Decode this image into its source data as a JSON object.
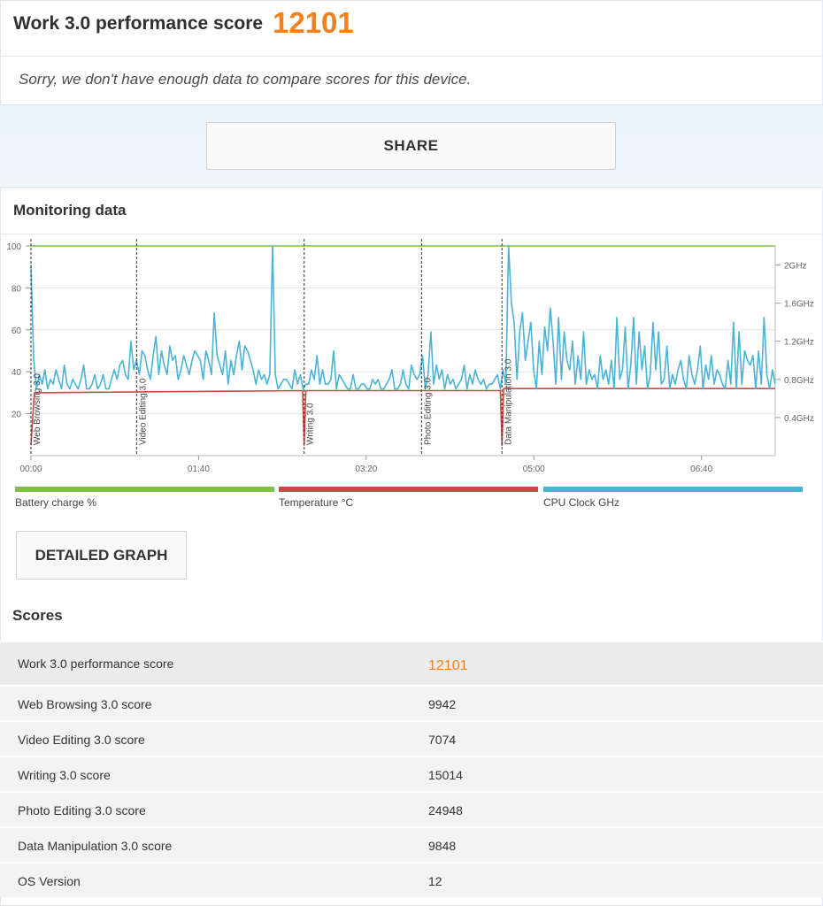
{
  "header": {
    "title": "Work 3.0 performance score",
    "score": "12101",
    "note": "Sorry, we don't have enough data to compare scores for this device."
  },
  "share_label": "SHARE",
  "monitoring": {
    "title": "Monitoring data",
    "detailed_button": "DETAILED GRAPH",
    "legend": [
      {
        "label": "Battery charge %",
        "color": "#7cc144"
      },
      {
        "label": "Temperature °C",
        "color": "#c94a45"
      },
      {
        "label": "CPU Clock GHz",
        "color": "#4ab3d6"
      }
    ]
  },
  "chart_data": {
    "type": "line",
    "x_tick_labels": [
      "00:00",
      "01:40",
      "03:20",
      "05:00",
      "06:40"
    ],
    "x_ticks_sec": [
      0,
      100,
      200,
      300,
      400
    ],
    "xlim_sec": [
      0,
      444
    ],
    "y_left_ticks": [
      20,
      40,
      60,
      80,
      100
    ],
    "y_left_lim": [
      0,
      100
    ],
    "y_right_ticks": [
      "0.4GHz",
      "0.8GHz",
      "1.2GHz",
      "1.6GHz",
      "2GHz"
    ],
    "y_right_values": [
      0.4,
      0.8,
      1.2,
      1.6,
      2.0
    ],
    "y_right_lim": [
      0,
      2.2
    ],
    "markers": [
      {
        "label": "Web Browsing 3.0",
        "t": 0
      },
      {
        "label": "Video Editing 3.0",
        "t": 63
      },
      {
        "label": "Writing 3.0",
        "t": 163
      },
      {
        "label": "Photo Editing 3.0",
        "t": 233
      },
      {
        "label": "Data Manipulation 3.0",
        "t": 281
      }
    ],
    "series": [
      {
        "name": "Battery charge %",
        "color": "#7cc144",
        "points": [
          [
            0,
            100
          ],
          [
            444,
            100
          ]
        ]
      },
      {
        "name": "Temperature °C",
        "color": "#c94a45",
        "points": [
          [
            0,
            5
          ],
          [
            2,
            30
          ],
          [
            162,
            31
          ],
          [
            163,
            5
          ],
          [
            164,
            31
          ],
          [
            280,
            31
          ],
          [
            281,
            5
          ],
          [
            282,
            32
          ],
          [
            444,
            32
          ]
        ]
      },
      {
        "name": "CPU Clock GHz",
        "color": "#4ab3d6",
        "values_ghz": [
          2.0,
          1.0,
          0.7,
          0.85,
          0.75,
          0.9,
          0.7,
          0.8,
          0.75,
          0.9,
          0.8,
          0.7,
          0.95,
          0.75,
          0.7,
          0.8,
          0.75,
          0.7,
          0.8,
          0.95,
          0.7,
          0.7,
          0.75,
          0.85,
          0.7,
          0.75,
          0.85,
          0.7,
          0.7,
          0.8,
          0.9,
          0.8,
          0.95,
          1.0,
          0.85,
          0.8,
          1.2,
          0.9,
          1.0,
          0.85,
          1.1,
          1.05,
          0.9,
          0.8,
          1.05,
          1.25,
          0.85,
          1.1,
          0.95,
          0.85,
          1.15,
          1.0,
          1.05,
          0.8,
          0.9,
          1.05,
          0.95,
          0.85,
          1.0,
          1.1,
          1.05,
          1.0,
          0.8,
          1.1,
          1.0,
          0.85,
          1.5,
          1.05,
          0.95,
          0.85,
          1.1,
          0.75,
          1.0,
          0.85,
          1.05,
          1.2,
          0.9,
          1.15,
          1.1,
          1.0,
          0.9,
          0.75,
          0.9,
          0.8,
          0.85,
          0.75,
          0.85,
          2.2,
          0.85,
          0.7,
          0.75,
          0.8,
          0.8,
          0.75,
          0.7,
          0.9,
          0.75,
          0.85,
          0.7,
          0.75,
          0.75,
          0.9,
          0.8,
          1.05,
          0.75,
          0.9,
          0.75,
          0.75,
          0.8,
          1.1,
          0.7,
          0.85,
          0.8,
          0.75,
          0.7,
          0.7,
          0.85,
          0.7,
          0.7,
          0.75,
          0.75,
          0.7,
          0.7,
          0.8,
          0.75,
          0.8,
          0.7,
          0.7,
          0.75,
          0.8,
          0.9,
          0.7,
          0.7,
          0.75,
          0.9,
          0.75,
          0.7,
          0.95,
          0.85,
          0.8,
          0.85,
          1.05,
          0.7,
          0.85,
          1.3,
          0.75,
          0.95,
          0.8,
          0.9,
          0.7,
          0.85,
          0.75,
          0.8,
          0.7,
          0.75,
          0.8,
          0.95,
          0.7,
          0.85,
          0.75,
          0.9,
          0.8,
          0.75,
          0.8,
          0.7,
          0.75,
          0.75,
          0.8,
          0.85,
          0.7,
          0.9,
          0.75,
          2.2,
          1.6,
          1.4,
          0.8,
          1.3,
          1.5,
          1.0,
          1.2,
          1.4,
          0.9,
          0.7,
          1.2,
          0.85,
          1.35,
          1.1,
          1.55,
          1.2,
          0.75,
          1.45,
          0.8,
          1.3,
          1.0,
          0.9,
          1.2,
          0.75,
          1.05,
          0.8,
          1.3,
          0.75,
          0.9,
          0.8,
          0.85,
          0.7,
          1.05,
          0.8,
          0.9,
          0.75,
          1.0,
          0.7,
          1.45,
          0.8,
          0.9,
          1.35,
          0.7,
          0.95,
          1.45,
          0.75,
          1.3,
          0.9,
          1.15,
          0.7,
          0.85,
          1.4,
          0.9,
          1.3,
          0.75,
          0.8,
          1.15,
          0.7,
          0.85,
          0.75,
          0.9,
          1.0,
          0.8,
          0.7,
          1.05,
          0.85,
          0.75,
          0.9,
          1.15,
          0.7,
          0.95,
          0.8,
          1.05,
          0.75,
          0.9,
          0.85,
          0.75,
          0.7,
          1.0,
          0.75,
          1.4,
          0.7,
          1.3,
          0.75,
          1.1,
          1.0,
          0.95,
          1.05,
          0.7,
          1.1,
          0.75,
          1.45,
          0.85,
          0.7,
          0.9,
          0.75
        ]
      }
    ]
  },
  "scores": {
    "heading": "Scores",
    "rows": [
      {
        "name": "Work 3.0 performance score",
        "value": "12101"
      },
      {
        "name": "Web Browsing 3.0 score",
        "value": "9942"
      },
      {
        "name": "Video Editing 3.0 score",
        "value": "7074"
      },
      {
        "name": "Writing 3.0 score",
        "value": "15014"
      },
      {
        "name": "Photo Editing 3.0 score",
        "value": "24948"
      },
      {
        "name": "Data Manipulation 3.0 score",
        "value": "9848"
      },
      {
        "name": "OS Version",
        "value": "12"
      }
    ]
  }
}
